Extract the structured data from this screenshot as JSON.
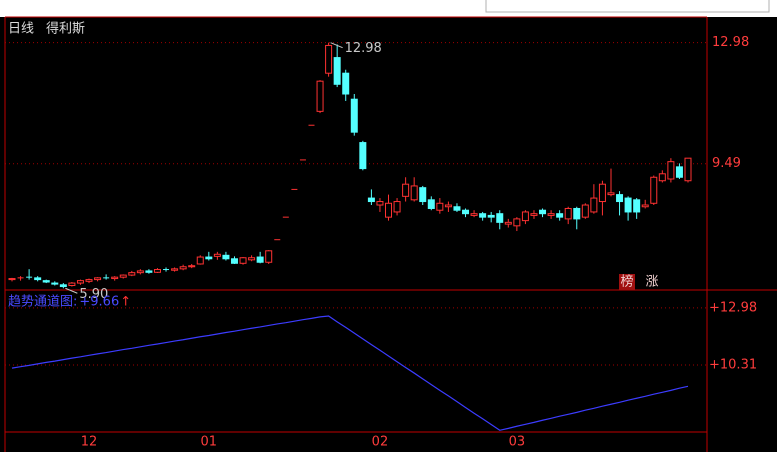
{
  "header": {
    "period": "日线",
    "name": "得利斯"
  },
  "badges": [
    "榜",
    "涨"
  ],
  "chart_data": [
    {
      "type": "candlestick",
      "categories": [
        null,
        null,
        null,
        null,
        null,
        null,
        null,
        null,
        null,
        "12",
        null,
        null,
        null,
        null,
        null,
        null,
        null,
        null,
        null,
        null,
        null,
        null,
        null,
        "01",
        null,
        null,
        null,
        null,
        null,
        null,
        null,
        null,
        null,
        null,
        null,
        null,
        null,
        null,
        null,
        null,
        null,
        null,
        null,
        "02",
        null,
        null,
        null,
        null,
        null,
        null,
        null,
        null,
        null,
        null,
        null,
        null,
        null,
        null,
        null,
        "03",
        null,
        null,
        null,
        null,
        null,
        null,
        null,
        null,
        null,
        null,
        null,
        null,
        null,
        null,
        null,
        null,
        null,
        null,
        null,
        null
      ],
      "open": [
        6.15,
        6.18,
        6.22,
        6.2,
        6.12,
        6.05,
        6.0,
        5.98,
        6.05,
        6.1,
        6.15,
        6.2,
        6.18,
        6.22,
        6.28,
        6.35,
        6.4,
        6.36,
        6.44,
        6.42,
        6.46,
        6.52,
        6.6,
        6.8,
        6.82,
        6.85,
        6.75,
        6.62,
        6.72,
        6.8,
        6.65,
        7.3,
        7.95,
        8.75,
        9.6,
        10.6,
        11.0,
        12.1,
        12.55,
        12.1,
        11.35,
        10.1,
        8.5,
        8.3,
        7.95,
        8.1,
        8.55,
        8.45,
        8.8,
        8.45,
        8.15,
        8.25,
        8.25,
        8.15,
        8.0,
        8.05,
        8.0,
        8.05,
        7.75,
        7.7,
        7.85,
        8.0,
        8.15,
        8.0,
        8.05,
        7.9,
        8.2,
        7.95,
        8.1,
        8.4,
        8.6,
        8.6,
        8.5,
        8.45,
        8.25,
        8.35,
        9.0,
        9.05,
        9.4,
        9.0
      ],
      "high": [
        6.2,
        6.25,
        6.45,
        6.25,
        6.15,
        6.1,
        6.05,
        6.08,
        6.15,
        6.18,
        6.22,
        6.3,
        6.25,
        6.3,
        6.4,
        6.45,
        6.45,
        6.48,
        6.5,
        6.5,
        6.58,
        6.6,
        6.85,
        6.95,
        6.95,
        6.95,
        6.82,
        6.8,
        6.85,
        6.95,
        7.0,
        7.3,
        7.95,
        8.75,
        9.6,
        10.6,
        11.9,
        12.98,
        12.93,
        12.2,
        11.5,
        10.15,
        8.75,
        8.5,
        8.6,
        8.5,
        9.1,
        9.1,
        8.85,
        8.55,
        8.5,
        8.4,
        8.35,
        8.2,
        8.15,
        8.1,
        8.1,
        8.15,
        7.9,
        7.95,
        8.15,
        8.15,
        8.2,
        8.15,
        8.15,
        8.25,
        8.25,
        8.35,
        8.9,
        9.0,
        9.35,
        8.7,
        8.55,
        8.5,
        8.45,
        9.15,
        9.3,
        9.65,
        9.5,
        9.65
      ],
      "low": [
        6.1,
        6.12,
        6.15,
        6.1,
        6.05,
        5.98,
        5.9,
        5.95,
        6.0,
        6.05,
        6.1,
        6.15,
        6.12,
        6.18,
        6.25,
        6.3,
        6.32,
        6.34,
        6.38,
        6.38,
        6.42,
        6.48,
        6.58,
        6.7,
        6.72,
        6.7,
        6.6,
        6.58,
        6.68,
        6.62,
        6.6,
        7.3,
        7.95,
        8.75,
        9.6,
        10.6,
        10.95,
        12.0,
        11.7,
        11.3,
        10.3,
        9.3,
        8.3,
        8.1,
        7.85,
        8.0,
        8.4,
        8.4,
        8.3,
        8.15,
        8.05,
        8.1,
        8.1,
        7.95,
        7.95,
        7.85,
        7.8,
        7.6,
        7.65,
        7.55,
        7.75,
        7.9,
        7.95,
        7.9,
        7.85,
        7.75,
        7.6,
        7.9,
        8.05,
        8.0,
        8.55,
        8.0,
        7.85,
        7.9,
        8.2,
        8.3,
        8.95,
        8.95,
        9.05,
        8.95
      ],
      "close": [
        6.18,
        6.2,
        6.2,
        6.15,
        6.08,
        6.02,
        5.95,
        6.05,
        6.12,
        6.15,
        6.2,
        6.18,
        6.22,
        6.28,
        6.35,
        6.4,
        6.36,
        6.44,
        6.42,
        6.46,
        6.52,
        6.55,
        6.8,
        6.75,
        6.88,
        6.75,
        6.62,
        6.78,
        6.78,
        6.65,
        6.98,
        7.3,
        7.95,
        8.75,
        9.6,
        10.6,
        11.87,
        12.9,
        11.78,
        11.5,
        10.4,
        9.35,
        8.4,
        8.4,
        8.35,
        8.4,
        8.9,
        8.85,
        8.4,
        8.2,
        8.35,
        8.3,
        8.15,
        8.05,
        8.05,
        7.95,
        7.95,
        7.8,
        7.8,
        7.9,
        8.1,
        8.05,
        8.05,
        8.05,
        7.95,
        8.2,
        7.9,
        8.3,
        8.5,
        8.9,
        8.65,
        8.4,
        8.1,
        8.1,
        8.3,
        9.1,
        9.2,
        9.55,
        9.1,
        9.65
      ],
      "up_color": "#ff3232",
      "down_color": "#54ffff",
      "ylim": [
        5.85,
        13.72
      ],
      "yticks": [
        12.98,
        9.49
      ],
      "grid": true,
      "annotations": [
        {
          "value": 12.98,
          "label": "12.98",
          "at": "high"
        },
        {
          "value": 5.9,
          "label": "5.90",
          "at": "low"
        }
      ]
    },
    {
      "type": "line",
      "title": "趋势通道图:",
      "current": {
        "value": 9.66,
        "label": "+9.66"
      },
      "arrow": "↑",
      "series": [
        {
          "color": "#3c3cff",
          "values": [
            10.16,
            10.23,
            10.29,
            10.36,
            10.43,
            10.49,
            10.56,
            10.63,
            10.69,
            10.76,
            10.83,
            10.89,
            10.96,
            11.03,
            11.09,
            11.16,
            11.23,
            11.29,
            11.36,
            11.43,
            11.49,
            11.56,
            11.63,
            11.69,
            11.76,
            11.83,
            11.89,
            11.96,
            12.03,
            12.09,
            12.16,
            12.23,
            12.29,
            12.36,
            12.43,
            12.49,
            12.56,
            12.6,
            12.33,
            12.07,
            11.8,
            11.53,
            11.26,
            11.0,
            10.73,
            10.46,
            10.19,
            9.93,
            9.66,
            9.39,
            9.12,
            8.86,
            8.59,
            8.32,
            8.05,
            7.79,
            7.52,
            7.25,
            7.34,
            7.44,
            7.53,
            7.62,
            7.72,
            7.81,
            7.91,
            8.0,
            8.09,
            8.19,
            8.28,
            8.38,
            8.47,
            8.56,
            8.66,
            8.75,
            8.84,
            8.94,
            9.03,
            9.12,
            9.22,
            9.31
          ]
        }
      ],
      "ylim": [
        7.17,
        13.82
      ],
      "yticks": [
        {
          "value": 12.98,
          "label": "+12.98"
        },
        {
          "value": 10.31,
          "label": "+10.31"
        }
      ],
      "grid": true
    }
  ]
}
